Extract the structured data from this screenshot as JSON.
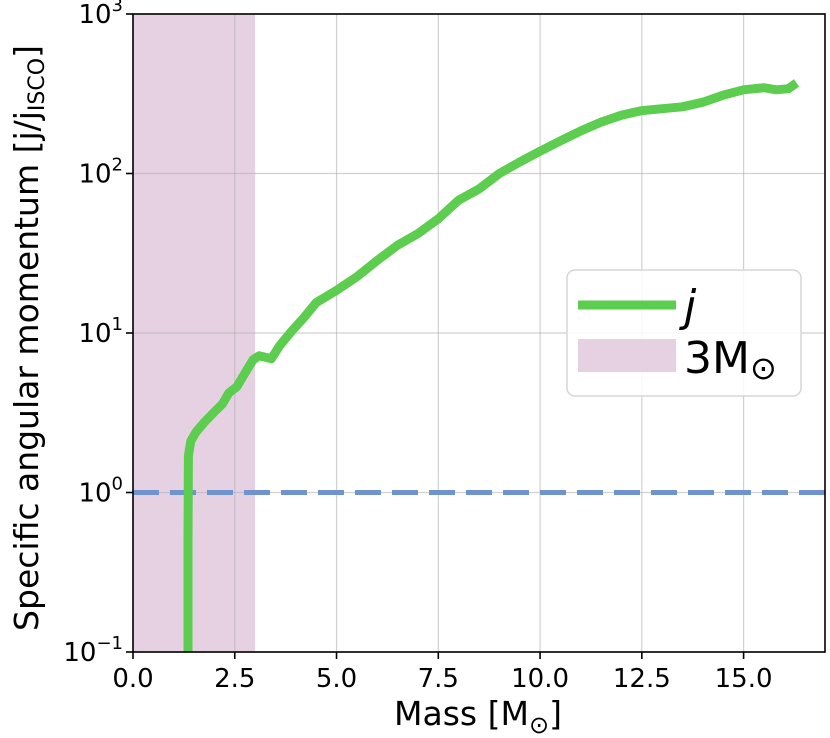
{
  "chart_data": {
    "type": "line",
    "title": "",
    "xlabel": "Mass [M",
    "xlabel_sub": "⊙",
    "xlabel_end": "]",
    "ylabel": "Specific angular momentum [j/j",
    "ylabel_sub": "ISCO",
    "ylabel_end": "]",
    "xlim": [
      0,
      17
    ],
    "ylim": [
      0.1,
      1000
    ],
    "yscale": "log",
    "grid": true,
    "legend_placement": "center-right",
    "xticks": [
      {
        "value": 0.0,
        "label": "0.0"
      },
      {
        "value": 2.5,
        "label": "2.5"
      },
      {
        "value": 5.0,
        "label": "5.0"
      },
      {
        "value": 7.5,
        "label": "7.5"
      },
      {
        "value": 10.0,
        "label": "10.0"
      },
      {
        "value": 12.5,
        "label": "12.5"
      },
      {
        "value": 15.0,
        "label": "15.0"
      }
    ],
    "yticks": [
      {
        "value": 0.1,
        "base": "10",
        "exp": "−1"
      },
      {
        "value": 1,
        "base": "10",
        "exp": "0"
      },
      {
        "value": 10,
        "base": "10",
        "exp": "1"
      },
      {
        "value": 100,
        "base": "10",
        "exp": "2"
      },
      {
        "value": 1000,
        "base": "10",
        "exp": "3"
      }
    ],
    "shaded_region": {
      "x0": 0,
      "x1": 3.0,
      "color": "#e6d1e3",
      "legend_label": "3M",
      "legend_sub": "⊙"
    },
    "reference_line": {
      "y": 1.0,
      "color": "#6f93cf",
      "style": "dashed"
    },
    "series": [
      {
        "name": "j",
        "color": "#5ccd4e",
        "x": [
          1.35,
          1.35,
          1.36,
          1.42,
          1.55,
          1.75,
          2.0,
          2.2,
          2.35,
          2.55,
          2.75,
          2.95,
          3.1,
          3.4,
          3.6,
          3.9,
          4.2,
          4.5,
          5.0,
          5.5,
          6.0,
          6.5,
          7.0,
          7.5,
          8.0,
          8.5,
          9.0,
          9.5,
          10.0,
          10.5,
          11.0,
          11.5,
          12.0,
          12.5,
          13.0,
          13.5,
          14.0,
          14.5,
          15.0,
          15.5,
          15.8,
          16.1,
          16.3
        ],
        "y": [
          0.1,
          0.5,
          1.7,
          2.1,
          2.4,
          2.75,
          3.2,
          3.6,
          4.2,
          4.6,
          5.6,
          6.8,
          7.2,
          6.9,
          8.3,
          10.3,
          12.5,
          15.5,
          18.5,
          22.5,
          28.5,
          35.5,
          42,
          52,
          68,
          80,
          100,
          118,
          138,
          160,
          185,
          210,
          232,
          248,
          255,
          262,
          280,
          310,
          335,
          345,
          335,
          340,
          370
        ]
      }
    ]
  }
}
